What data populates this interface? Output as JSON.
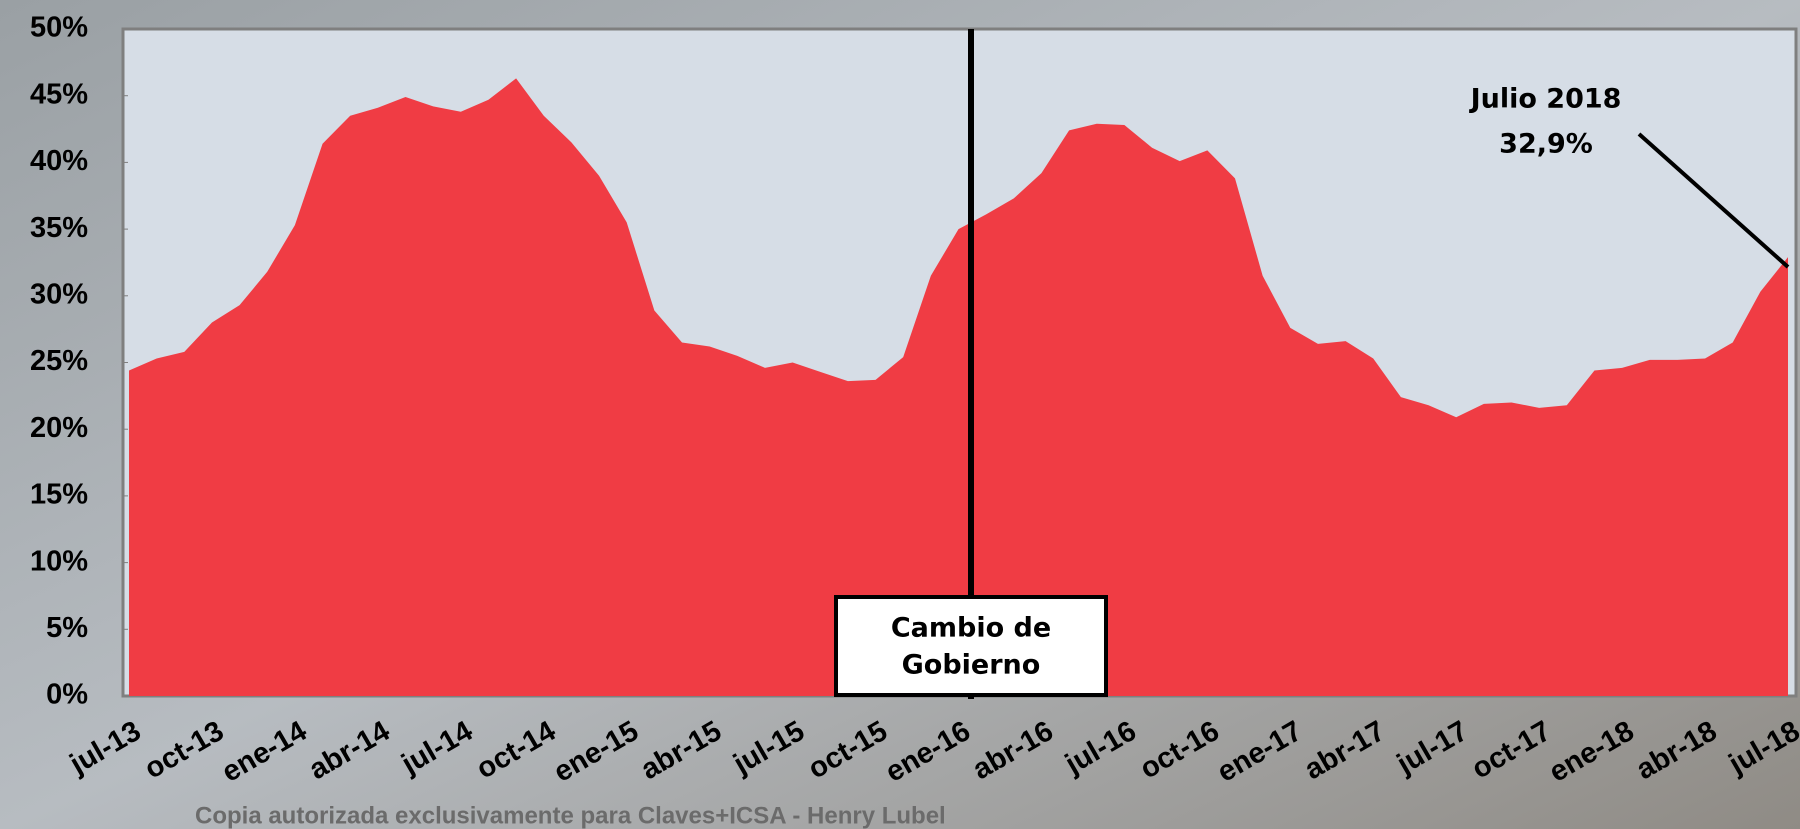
{
  "chart_data": {
    "type": "area",
    "categories": [
      "jul-13",
      null,
      null,
      "oct-13",
      null,
      null,
      "ene-14",
      null,
      null,
      "abr-14",
      null,
      null,
      "jul-14",
      null,
      null,
      "oct-14",
      null,
      null,
      "ene-15",
      null,
      null,
      "abr-15",
      null,
      null,
      "jul-15",
      null,
      null,
      "oct-15",
      null,
      null,
      "ene-16",
      null,
      null,
      "abr-16",
      null,
      null,
      "jul-16",
      null,
      null,
      "oct-16",
      null,
      null,
      "ene-17",
      null,
      null,
      "abr-17",
      null,
      null,
      "jul-17",
      null,
      null,
      "oct-17",
      null,
      null,
      "ene-18",
      null,
      null,
      "abr-18",
      null,
      null,
      "jul-18"
    ],
    "values": [
      24.4,
      25.3,
      25.8,
      28.0,
      29.3,
      31.8,
      35.3,
      41.4,
      43.5,
      44.1,
      44.9,
      44.2,
      43.8,
      44.7,
      46.3,
      43.5,
      41.5,
      39.0,
      35.5,
      28.9,
      26.5,
      26.2,
      25.5,
      24.6,
      25.0,
      24.3,
      23.6,
      23.7,
      25.4,
      31.5,
      35.0,
      36.1,
      37.3,
      39.2,
      42.4,
      42.9,
      42.8,
      41.1,
      40.1,
      40.9,
      38.8,
      31.5,
      27.6,
      26.4,
      26.6,
      25.3,
      22.4,
      21.8,
      20.9,
      21.9,
      22.0,
      21.6,
      21.8,
      24.4,
      24.6,
      25.2,
      25.2,
      25.3,
      26.5,
      30.3,
      32.9
    ],
    "color": "#f03c44",
    "ylim": [
      0,
      50
    ],
    "yticks": [
      {
        "value": 0,
        "label": "0%"
      },
      {
        "value": 5,
        "label": "5%"
      },
      {
        "value": 10,
        "label": "10%"
      },
      {
        "value": 15,
        "label": "15%"
      },
      {
        "value": 20,
        "label": "20%"
      },
      {
        "value": 25,
        "label": "25%"
      },
      {
        "value": 30,
        "label": "30%"
      },
      {
        "value": 35,
        "label": "35%"
      },
      {
        "value": 40,
        "label": "40%"
      },
      {
        "value": 45,
        "label": "45%"
      },
      {
        "value": 50,
        "label": "50%"
      }
    ],
    "annotations": [
      "Julio 2018",
      "32,9%"
    ],
    "event_label": [
      "Cambio de",
      "Gobierno"
    ],
    "footer": "Copia autorizada exclusivamente para Claves+ICSA - Henry Lubel"
  }
}
